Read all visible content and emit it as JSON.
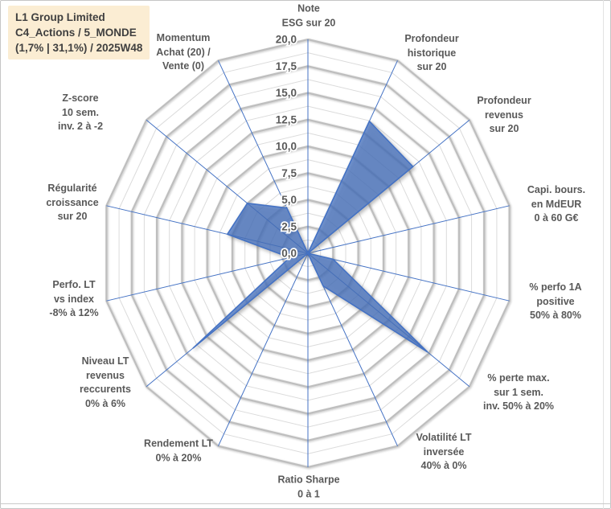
{
  "header": {
    "line1": "L1 Group Limited",
    "line2": "C4_Actions / 5_MONDE",
    "line3": "(1,7% | 31,1%) / 2025W48",
    "box_bg": "#fbedd3"
  },
  "chart_data": {
    "type": "radar",
    "title": "",
    "legend": "none",
    "categories": [
      {
        "label": "Note ESG sur 20",
        "lines": [
          "Note",
          "ESG sur 20"
        ]
      },
      {
        "label": "Profondeur historique sur 20",
        "lines": [
          "Profondeur",
          "historique",
          "sur 20"
        ]
      },
      {
        "label": "Profondeur revenus sur 20",
        "lines": [
          "Profondeur",
          "revenus",
          "sur 20"
        ]
      },
      {
        "label": "Capi. bours. en MdEUR 0 à 60 G€",
        "lines": [
          "Capi. bours.",
          "en MdEUR",
          "0 à 60 G€"
        ]
      },
      {
        "label": "% perfo 1A positive 50% à 80%",
        "lines": [
          "% perfo 1A",
          "positive",
          "50% à 80%"
        ]
      },
      {
        "label": "% perte max. sur 1 sem. inv. 50% à 20%",
        "lines": [
          "% perte max.",
          "sur 1 sem.",
          "inv. 50% à 20%"
        ]
      },
      {
        "label": "Volatilité LT inversée 40% à 0%",
        "lines": [
          "Volatilité LT",
          "inversée",
          "40% à 0%"
        ]
      },
      {
        "label": "Ratio Sharpe 0 à 1",
        "lines": [
          "Ratio Sharpe",
          "0 à 1"
        ]
      },
      {
        "label": "Rendement LT 0% à 20%",
        "lines": [
          "Rendement LT",
          "0% à 20%"
        ]
      },
      {
        "label": "Niveau LT revenus reccurents 0% à 6%",
        "lines": [
          "Niveau LT",
          "revenus",
          "reccurents",
          "0% à 6%"
        ]
      },
      {
        "label": "Perfo. LT vs index -8% à 12%",
        "lines": [
          "Perfo. LT",
          "vs index",
          "-8% à 12%"
        ]
      },
      {
        "label": "Régularité croissance sur 20",
        "lines": [
          "Régularité",
          "croissance",
          "sur 20"
        ]
      },
      {
        "label": "Z-score 10 sem. inv. 2 à -2",
        "lines": [
          "Z-score",
          "10 sem.",
          "inv. 2 à -2"
        ]
      },
      {
        "label": "Momentum Achat (20) / Vente (0)",
        "lines": [
          "Momentum",
          "Achat (20) /",
          "Vente (0)"
        ]
      }
    ],
    "values": [
      0,
      13.7,
      13.0,
      0,
      2.5,
      14.8,
      3.4,
      0,
      0,
      14.2,
      1.8,
      8.0,
      7.5,
      4.7
    ],
    "axis": {
      "min": 0,
      "max": 20,
      "major_unit": 2.5,
      "minor_unit": 1.25,
      "minor_gridlines": true,
      "tick_labels": [
        "20,0",
        "17,5",
        "15,0",
        "12,5",
        "10,0",
        "7,5",
        "5,0",
        "2,5",
        "0,0"
      ]
    },
    "colors": {
      "series_fill": "#4472c4",
      "series_stroke": "#4472c4",
      "spoke": "#4472c4",
      "grid_major": "#bebebe",
      "grid_minor": "#dbdbdb",
      "label": "#595959"
    }
  }
}
